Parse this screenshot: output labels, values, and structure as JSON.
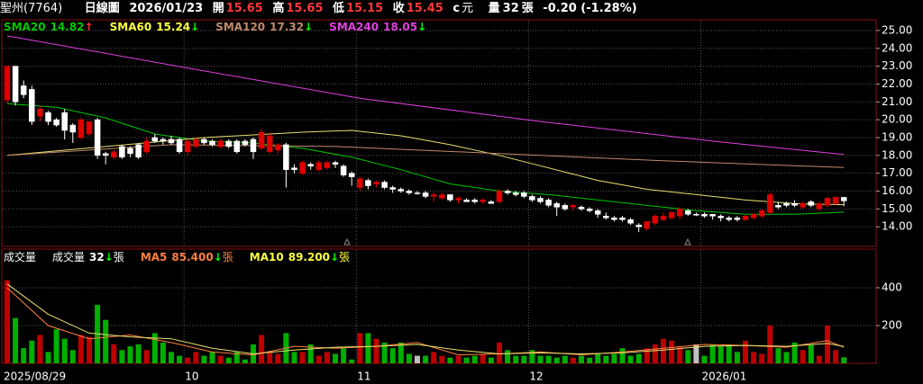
{
  "header": {
    "name": "聖州(7764)",
    "chart_kind": "日線圖",
    "date": "2026/01/23",
    "open_label": "開",
    "open": "15.65",
    "high_label": "高",
    "high": "15.65",
    "low_label": "低",
    "low": "15.15",
    "close_label": "收",
    "close": "15.45",
    "currency_code": "c",
    "currency": "元",
    "volume_label": "量",
    "volume": "32",
    "volume_unit": "張",
    "change": "-0.20 (-1.28%)"
  },
  "chart_data": [
    {
      "type": "candlestick",
      "open": [
        21.1,
        23.0,
        21.9,
        21.7,
        20.2,
        20.4,
        20.0,
        20.4,
        19.7,
        19.0,
        19.2,
        20.0,
        18.1,
        17.9,
        18.5,
        18.4,
        18.6,
        18.2,
        19.0,
        18.9,
        18.9,
        18.9,
        18.2,
        18.5,
        18.9,
        18.8,
        18.5,
        18.8,
        18.8,
        18.8,
        18.9,
        18.4,
        18.2,
        18.3,
        18.6,
        17.3,
        17.0,
        17.5,
        17.2,
        17.3,
        17.6,
        17.4,
        17.0,
        16.2,
        16.6,
        16.4,
        16.5,
        16.2,
        16.1,
        16.0,
        15.9,
        15.9,
        15.7,
        15.6,
        15.8,
        15.5,
        15.5,
        15.5,
        15.4,
        15.4,
        15.4,
        16.0,
        15.9,
        15.9,
        15.7,
        15.6,
        15.5,
        15.3,
        15.2,
        15.1,
        15.1,
        15.0,
        14.9,
        14.6,
        14.5,
        14.5,
        14.4,
        14.1,
        13.9,
        14.2,
        14.4,
        14.5,
        14.6,
        14.9,
        14.7,
        14.7,
        14.7,
        14.6,
        14.5,
        14.5,
        14.4,
        14.5,
        14.6,
        14.8,
        15.2,
        15.3,
        15.3,
        15.1,
        15.4,
        15.0,
        15.2,
        15.3,
        15.65
      ],
      "high": [
        23.0,
        23.0,
        22.2,
        21.9,
        20.8,
        20.5,
        20.1,
        20.6,
        19.8,
        20.1,
        19.9,
        20.1,
        18.2,
        18.3,
        18.6,
        18.5,
        18.7,
        19.0,
        19.2,
        19.0,
        19.1,
        19.0,
        18.9,
        19.0,
        19.0,
        18.9,
        18.9,
        18.9,
        18.9,
        18.9,
        19.0,
        19.5,
        19.3,
        18.7,
        18.7,
        17.5,
        17.7,
        17.6,
        17.7,
        17.7,
        17.7,
        17.5,
        17.1,
        16.8,
        16.7,
        16.6,
        16.6,
        16.3,
        16.2,
        16.1,
        16.0,
        16.0,
        15.9,
        15.9,
        15.8,
        15.7,
        15.6,
        15.6,
        15.6,
        15.5,
        16.1,
        16.1,
        16.0,
        16.0,
        15.8,
        15.7,
        15.6,
        15.4,
        15.3,
        15.3,
        15.2,
        15.1,
        15.0,
        14.8,
        14.6,
        14.6,
        14.5,
        14.2,
        14.3,
        14.7,
        14.8,
        14.9,
        15.1,
        15.0,
        14.8,
        14.8,
        14.7,
        14.7,
        14.6,
        14.6,
        14.7,
        14.8,
        15.0,
        15.9,
        15.4,
        15.4,
        15.5,
        15.4,
        15.5,
        15.4,
        15.7,
        15.7,
        15.65
      ],
      "low": [
        20.9,
        20.8,
        21.2,
        19.7,
        19.9,
        19.7,
        19.6,
        18.9,
        18.7,
        18.9,
        19.1,
        17.8,
        17.5,
        17.8,
        17.8,
        17.9,
        17.8,
        18.1,
        18.7,
        18.6,
        18.6,
        18.1,
        18.0,
        18.4,
        18.6,
        18.5,
        18.4,
        18.4,
        18.1,
        18.5,
        17.8,
        18.3,
        18.1,
        18.1,
        16.2,
        17.0,
        16.9,
        17.2,
        17.1,
        17.2,
        17.3,
        16.8,
        16.3,
        16.0,
        16.1,
        16.2,
        16.1,
        15.9,
        15.9,
        15.8,
        15.8,
        15.6,
        15.4,
        15.5,
        15.4,
        15.3,
        15.4,
        15.3,
        15.3,
        15.3,
        15.3,
        15.8,
        15.7,
        15.6,
        15.4,
        15.3,
        15.1,
        14.6,
        14.9,
        14.9,
        14.9,
        14.8,
        14.5,
        14.4,
        14.3,
        14.3,
        14.1,
        13.7,
        13.8,
        14.1,
        14.3,
        14.4,
        14.4,
        14.6,
        14.6,
        14.5,
        14.4,
        14.3,
        14.3,
        14.3,
        14.3,
        14.4,
        14.5,
        14.7,
        15.0,
        15.1,
        15.1,
        15.0,
        15.1,
        14.9,
        15.1,
        15.2,
        15.15
      ],
      "close": [
        23.0,
        21.0,
        21.4,
        19.9,
        20.6,
        19.9,
        19.7,
        19.4,
        19.3,
        20.0,
        19.9,
        18.0,
        18.0,
        18.2,
        17.9,
        18.1,
        17.9,
        18.8,
        18.8,
        18.8,
        18.7,
        18.2,
        18.8,
        18.9,
        18.7,
        18.6,
        18.8,
        18.5,
        18.2,
        18.6,
        18.2,
        19.3,
        19.1,
        18.6,
        17.2,
        17.2,
        17.6,
        17.4,
        17.6,
        17.6,
        17.5,
        16.9,
        16.8,
        16.7,
        16.3,
        16.5,
        16.2,
        16.1,
        16.0,
        15.9,
        15.9,
        15.7,
        15.8,
        15.8,
        15.5,
        15.6,
        15.4,
        15.4,
        15.5,
        15.3,
        16.0,
        15.9,
        15.8,
        15.7,
        15.5,
        15.4,
        15.2,
        15.1,
        15.0,
        15.2,
        15.0,
        14.9,
        14.7,
        14.5,
        14.4,
        14.4,
        14.2,
        14.0,
        14.3,
        14.6,
        14.6,
        14.8,
        15.0,
        14.7,
        14.7,
        14.6,
        14.6,
        14.5,
        14.4,
        14.4,
        14.6,
        14.7,
        14.9,
        15.8,
        15.1,
        15.2,
        15.2,
        15.3,
        15.2,
        15.3,
        15.6,
        15.65,
        15.45
      ],
      "up_color": "#e00000",
      "down_color": "#ffffff",
      "flat_color": "#ffffff",
      "lines": [
        {
          "name": "SMA20",
          "color": "#00c800",
          "last": 14.82,
          "trend": "↑",
          "trend_color": "#ff3030",
          "x": [
            0,
            6,
            12,
            18,
            24,
            30,
            36,
            42,
            48,
            54,
            60,
            66,
            72,
            78,
            84,
            90,
            96,
            102
          ],
          "values": [
            20.9,
            20.7,
            20.1,
            19.2,
            18.8,
            18.7,
            18.4,
            17.9,
            17.2,
            16.4,
            16.0,
            15.8,
            15.5,
            15.2,
            14.9,
            14.7,
            14.7,
            14.82
          ]
        },
        {
          "name": "SMA60",
          "color": "#e8e070",
          "text_color": "#ffff40",
          "last": 15.24,
          "trend": "↓",
          "trend_color": "#00ff00",
          "x": [
            0,
            12,
            24,
            36,
            42,
            48,
            54,
            60,
            66,
            72,
            78,
            84,
            90,
            96,
            102
          ],
          "values": [
            18.0,
            18.5,
            19.0,
            19.3,
            19.4,
            19.1,
            18.6,
            18.0,
            17.3,
            16.6,
            16.1,
            15.8,
            15.5,
            15.3,
            15.24
          ]
        },
        {
          "name": "SMA120",
          "color": "#c08a6a",
          "last": 17.32,
          "trend": "↓",
          "trend_color": "#00ff00",
          "x": [
            0,
            20,
            40,
            60,
            80,
            102
          ],
          "values": [
            18.0,
            18.6,
            18.5,
            18.1,
            17.7,
            17.32
          ]
        },
        {
          "name": "SMA240",
          "color": "#e040e0",
          "last": 18.05,
          "trend": "↓",
          "trend_color": "#00ff00",
          "x": [
            0,
            22,
            43,
            65,
            87,
            102
          ],
          "values": [
            24.7,
            22.9,
            21.2,
            19.9,
            18.75,
            18.05
          ]
        }
      ],
      "ylim": [
        13.0,
        25.5
      ],
      "yticks": [
        {
          "value": 14,
          "label": "14.00"
        },
        {
          "value": 15,
          "label": "15.00"
        },
        {
          "value": 16,
          "label": "16.00"
        },
        {
          "value": 17,
          "label": "17.00"
        },
        {
          "value": 18,
          "label": "18.00"
        },
        {
          "value": 19,
          "label": "19.00"
        },
        {
          "value": 20,
          "label": "20.00"
        },
        {
          "value": 21,
          "label": "21.00"
        },
        {
          "value": 22,
          "label": "22.00"
        },
        {
          "value": 23,
          "label": "23.00"
        },
        {
          "value": 24,
          "label": "24.00"
        },
        {
          "value": 25,
          "label": "25.00"
        }
      ],
      "grid": true
    },
    {
      "type": "bar",
      "title": "成交量",
      "current": {
        "label": "成交量",
        "value": 32,
        "trend": "↓",
        "unit": "張"
      },
      "categories": [
        "2025/08/29",
        null,
        null,
        null,
        null,
        null,
        null,
        null,
        null,
        null,
        null,
        null,
        null,
        null,
        null,
        null,
        null,
        null,
        null,
        null,
        null,
        null,
        "10",
        null,
        null,
        null,
        null,
        null,
        null,
        null,
        null,
        null,
        null,
        null,
        null,
        null,
        null,
        null,
        null,
        null,
        null,
        null,
        null,
        "11",
        null,
        null,
        null,
        null,
        null,
        null,
        null,
        null,
        null,
        null,
        null,
        null,
        null,
        null,
        null,
        null,
        null,
        null,
        null,
        null,
        "12",
        null,
        null,
        null,
        null,
        null,
        null,
        null,
        null,
        null,
        null,
        null,
        null,
        null,
        null,
        null,
        null,
        null,
        null,
        null,
        null,
        "2026/01",
        null,
        null,
        null,
        null,
        null,
        null,
        null,
        null,
        null,
        null,
        null,
        null,
        null,
        null,
        null,
        null,
        null
      ],
      "values": [
        440,
        240,
        80,
        120,
        150,
        60,
        180,
        130,
        70,
        150,
        140,
        310,
        230,
        100,
        70,
        90,
        100,
        70,
        160,
        110,
        60,
        40,
        30,
        60,
        40,
        60,
        40,
        30,
        60,
        20,
        100,
        150,
        60,
        50,
        160,
        60,
        60,
        100,
        40,
        60,
        50,
        80,
        20,
        160,
        160,
        130,
        110,
        80,
        110,
        50,
        40,
        40,
        60,
        40,
        30,
        40,
        30,
        40,
        50,
        30,
        110,
        70,
        40,
        40,
        70,
        40,
        40,
        30,
        40,
        30,
        40,
        30,
        50,
        40,
        50,
        80,
        40,
        50,
        80,
        100,
        130,
        120,
        90,
        70,
        100,
        40,
        100,
        90,
        100,
        60,
        120,
        60,
        50,
        200,
        80,
        60,
        110,
        70,
        100,
        40,
        200,
        70,
        32
      ],
      "up_color": "#c00000",
      "down_color": "#00b000",
      "flat_color": "#c0c0c0",
      "lines": [
        {
          "name": "MA5",
          "color": "#ff8040",
          "last": 85.4,
          "last_label": "85.400",
          "trend": "↓",
          "trend_color": "#00ff00",
          "unit": "張",
          "x": [
            0,
            5,
            10,
            15,
            20,
            25,
            30,
            35,
            40,
            45,
            50,
            55,
            60,
            65,
            70,
            75,
            80,
            85,
            90,
            95,
            100,
            102
          ],
          "values": [
            400,
            200,
            130,
            150,
            110,
            60,
            45,
            90,
            80,
            90,
            110,
            45,
            50,
            60,
            45,
            60,
            80,
            100,
            95,
            85,
            120,
            85.4
          ]
        },
        {
          "name": "MA10",
          "color": "#e8e070",
          "text_color": "#ffff40",
          "last": 89.2,
          "last_label": "89.200",
          "trend": "↓",
          "trend_color": "#00ff00",
          "unit": "張",
          "x": [
            0,
            5,
            10,
            15,
            20,
            25,
            30,
            35,
            40,
            45,
            50,
            55,
            60,
            65,
            70,
            75,
            80,
            85,
            90,
            95,
            100,
            102
          ],
          "values": [
            420,
            260,
            160,
            140,
            130,
            80,
            50,
            70,
            85,
            90,
            100,
            70,
            50,
            55,
            50,
            55,
            70,
            90,
            95,
            90,
            105,
            89.2
          ]
        }
      ],
      "ylim": [
        0,
        600
      ],
      "yticks": [
        200,
        400
      ],
      "grid": true
    }
  ]
}
